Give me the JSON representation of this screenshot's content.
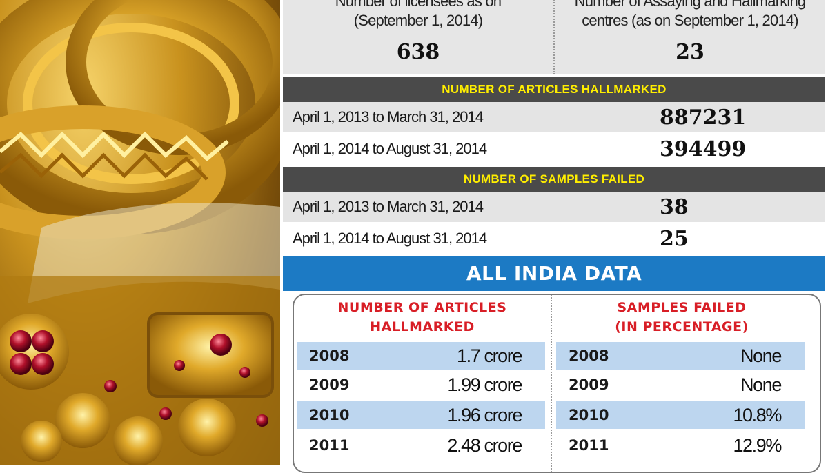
{
  "top": {
    "licensees": {
      "label_line1": "Number of licensees as on",
      "label_line2": "(September 1, 2014)",
      "value": "638"
    },
    "centres": {
      "label_line1": "Number of Assaying and Hallmarking",
      "label_line2": "centres (as on September 1, 2014)",
      "value": "23"
    }
  },
  "articles_hallmarked": {
    "title": "NUMBER OF ARTICLES HALLMARKED",
    "rows": [
      {
        "period": "April 1, 2013 to March 31, 2014",
        "value": "887231"
      },
      {
        "period": "April 1, 2014 to August 31, 2014",
        "value": "394499"
      }
    ]
  },
  "samples_failed": {
    "title": "NUMBER OF SAMPLES FAILED",
    "rows": [
      {
        "period": "April 1, 2013 to March 31, 2014",
        "value": "38"
      },
      {
        "period": "April 1, 2014 to August 31, 2014",
        "value": "25"
      }
    ]
  },
  "all_india": {
    "title": "ALL INDIA DATA",
    "hallmarked": {
      "head_line1": "NUMBER OF ARTICLES",
      "head_line2": "HALLMARKED",
      "rows": [
        {
          "year": "2008",
          "value": "1.7 crore"
        },
        {
          "year": "2009",
          "value": "1.99 crore"
        },
        {
          "year": "2010",
          "value": "1.96 crore"
        },
        {
          "year": "2011",
          "value": "2.48 crore"
        }
      ]
    },
    "failed": {
      "head_line1": "SAMPLES FAILED",
      "head_line2": "(IN PERCENTAGE)",
      "rows": [
        {
          "year": "2008",
          "value": "None"
        },
        {
          "year": "2009",
          "value": "None"
        },
        {
          "year": "2010",
          "value": "10.8%"
        },
        {
          "year": "2011",
          "value": "12.9%"
        }
      ]
    }
  },
  "colors": {
    "section_bar": "#4a4a4a",
    "section_text": "#ffee00",
    "india_bar": "#1c7ac4",
    "india_head_text": "#d81e26",
    "row_highlight": "#bdd6ef"
  },
  "photo": {
    "icon": "gold-jewellery-image"
  }
}
